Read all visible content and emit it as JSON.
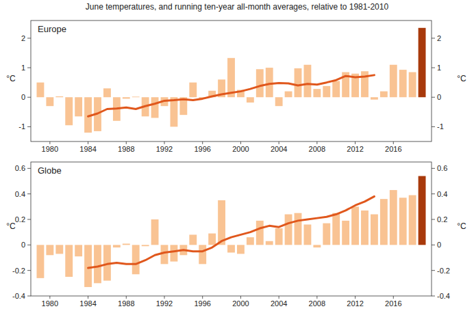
{
  "title": "June temperatures, and running ten-year all-month averages, relative to 1981-2010",
  "chart_data": [
    {
      "type": "bar",
      "title": "Europe",
      "ylabel": "°C",
      "x": [
        1979,
        1980,
        1981,
        1982,
        1983,
        1984,
        1985,
        1986,
        1987,
        1988,
        1989,
        1990,
        1991,
        1992,
        1993,
        1994,
        1995,
        1996,
        1997,
        1998,
        1999,
        2000,
        2001,
        2002,
        2003,
        2004,
        2005,
        2006,
        2007,
        2008,
        2009,
        2010,
        2011,
        2012,
        2013,
        2014,
        2015,
        2016,
        2017,
        2018,
        2019
      ],
      "xlim": [
        1978,
        2020
      ],
      "xticks": [
        1980,
        1984,
        1988,
        1992,
        1996,
        2000,
        2004,
        2008,
        2012,
        2016
      ],
      "ylim": [
        -1.5,
        2.6
      ],
      "yticks": [
        -1,
        0,
        1,
        2
      ],
      "series": [
        {
          "type": "bar",
          "colors": [
            "#f9c393",
            "#f9c393",
            "#f9c393",
            "#f9c393",
            "#f9c393",
            "#f9c393",
            "#f9c393",
            "#f9c393",
            "#f9c393",
            "#f9c393",
            "#f9c393",
            "#f9c393",
            "#f9c393",
            "#f9c393",
            "#f9c393",
            "#f9c393",
            "#f9c393",
            "#f9c393",
            "#f9c393",
            "#f9c393",
            "#f9c393",
            "#f9c393",
            "#f9c393",
            "#f9c393",
            "#f9c393",
            "#f9c393",
            "#f9c393",
            "#f9c393",
            "#f9c393",
            "#f9c393",
            "#f9c393",
            "#f9c393",
            "#f9c393",
            "#f9c393",
            "#f9c393",
            "#f9c393",
            "#f9c393",
            "#f9c393",
            "#f9c393",
            "#f9c393",
            "#a8390b"
          ],
          "values": [
            0.5,
            -0.3,
            0.03,
            -0.95,
            -0.65,
            -1.2,
            -1.15,
            0.3,
            -0.8,
            -0.05,
            0.02,
            -0.65,
            -0.7,
            -0.3,
            -1.0,
            -0.6,
            0.5,
            -0.05,
            0.22,
            0.6,
            1.33,
            0.25,
            -0.18,
            0.95,
            1.0,
            -0.3,
            0.2,
            0.98,
            1.1,
            0.28,
            0.38,
            0.55,
            0.85,
            0.8,
            0.88,
            -0.08,
            0.2,
            1.1,
            0.93,
            0.85,
            2.35
          ]
        },
        {
          "type": "line",
          "color": "#e0571c",
          "values": [
            null,
            null,
            null,
            null,
            null,
            -0.65,
            -0.55,
            -0.4,
            -0.38,
            -0.35,
            -0.4,
            -0.3,
            -0.22,
            -0.12,
            -0.1,
            -0.07,
            -0.1,
            -0.05,
            0.03,
            0.1,
            0.15,
            0.2,
            0.28,
            0.38,
            0.45,
            0.48,
            0.47,
            0.4,
            0.45,
            0.43,
            0.5,
            0.58,
            0.72,
            0.68,
            0.7,
            0.75,
            null,
            null,
            null,
            null,
            null
          ]
        }
      ]
    },
    {
      "type": "bar",
      "title": "Globe",
      "ylabel": "°C",
      "x": [
        1979,
        1980,
        1981,
        1982,
        1983,
        1984,
        1985,
        1986,
        1987,
        1988,
        1989,
        1990,
        1991,
        1992,
        1993,
        1994,
        1995,
        1996,
        1997,
        1998,
        1999,
        2000,
        2001,
        2002,
        2003,
        2004,
        2005,
        2006,
        2007,
        2008,
        2009,
        2010,
        2011,
        2012,
        2013,
        2014,
        2015,
        2016,
        2017,
        2018,
        2019
      ],
      "xlim": [
        1978,
        2020
      ],
      "xticks": [
        1980,
        1984,
        1988,
        1992,
        1996,
        2000,
        2004,
        2008,
        2012,
        2016
      ],
      "ylim": [
        -0.4,
        0.65
      ],
      "yticks": [
        -0.4,
        -0.2,
        0,
        0.2,
        0.4,
        0.6
      ],
      "series": [
        {
          "type": "bar",
          "colors": [
            "#f9c393",
            "#f9c393",
            "#f9c393",
            "#f9c393",
            "#f9c393",
            "#f9c393",
            "#f9c393",
            "#f9c393",
            "#f9c393",
            "#f9c393",
            "#f9c393",
            "#f9c393",
            "#f9c393",
            "#f9c393",
            "#f9c393",
            "#f9c393",
            "#f9c393",
            "#f9c393",
            "#f9c393",
            "#f9c393",
            "#f9c393",
            "#f9c393",
            "#f9c393",
            "#f9c393",
            "#f9c393",
            "#f9c393",
            "#f9c393",
            "#f9c393",
            "#f9c393",
            "#f9c393",
            "#f9c393",
            "#f9c393",
            "#f9c393",
            "#f9c393",
            "#f9c393",
            "#f9c393",
            "#f9c393",
            "#f9c393",
            "#f9c393",
            "#f9c393",
            "#a8390b"
          ],
          "values": [
            -0.26,
            -0.08,
            -0.07,
            -0.25,
            -0.09,
            -0.33,
            -0.3,
            -0.28,
            -0.02,
            0.01,
            -0.23,
            -0.01,
            0.2,
            -0.15,
            -0.13,
            -0.08,
            0.08,
            -0.15,
            0.09,
            0.35,
            -0.06,
            -0.07,
            0.06,
            0.19,
            0.03,
            0.13,
            0.24,
            0.25,
            0.16,
            -0.02,
            0.17,
            0.25,
            0.19,
            0.3,
            0.27,
            0.24,
            0.36,
            0.43,
            0.37,
            0.39,
            0.54
          ]
        },
        {
          "type": "line",
          "color": "#e0571c",
          "values": [
            null,
            null,
            null,
            null,
            null,
            -0.18,
            -0.17,
            -0.15,
            -0.14,
            -0.15,
            -0.15,
            -0.12,
            -0.08,
            -0.06,
            -0.05,
            -0.04,
            -0.05,
            -0.05,
            -0.02,
            0.03,
            0.06,
            0.08,
            0.1,
            0.13,
            0.15,
            0.14,
            0.17,
            0.19,
            0.2,
            0.21,
            0.22,
            0.24,
            0.27,
            0.31,
            0.34,
            0.38,
            null,
            null,
            null,
            null,
            null
          ]
        }
      ]
    }
  ]
}
